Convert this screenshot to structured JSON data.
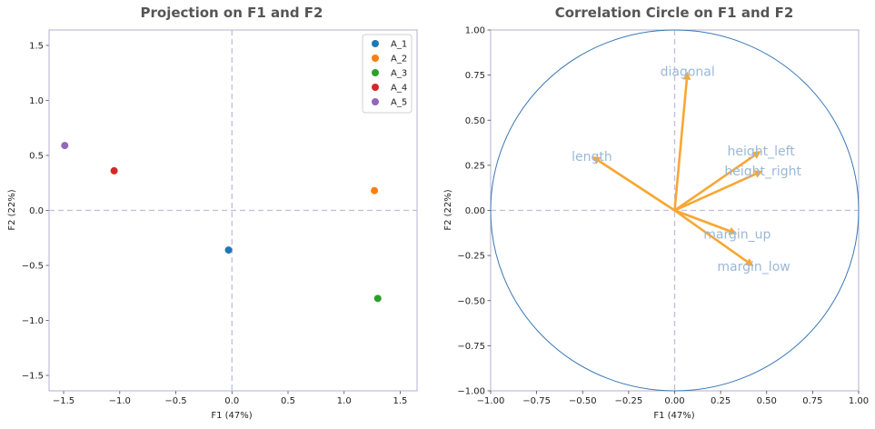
{
  "colors": {
    "frame": "#b0b0d0",
    "dashed": "#c0bde0",
    "circle": "#3a78b4",
    "arrow": "#f7a733",
    "var_label": "#9bb8d6"
  },
  "chart_data": [
    {
      "type": "scatter",
      "title": "Projection on F1 and F2",
      "xlabel": "F1 (47%)",
      "ylabel": "F2 (22%)",
      "xlim": [
        -1.63,
        1.65
      ],
      "ylim": [
        -1.64,
        1.64
      ],
      "xticks": [
        -1.5,
        -1.0,
        -0.5,
        0.0,
        0.5,
        1.0,
        1.5
      ],
      "xtick_labels": [
        "−1.5",
        "−1.0",
        "−0.5",
        "0.0",
        "0.5",
        "1.0",
        "1.5"
      ],
      "yticks": [
        -1.5,
        -1.0,
        -0.5,
        0.0,
        0.5,
        1.0,
        1.5
      ],
      "ytick_labels": [
        "−1.5",
        "−1.0",
        "−0.5",
        "0.0",
        "0.5",
        "1.0",
        "1.5"
      ],
      "legend_position": "top-right",
      "series": [
        {
          "name": "A_1",
          "x": -0.03,
          "y": -0.36,
          "color": "#1f77b4"
        },
        {
          "name": "A_2",
          "x": 1.27,
          "y": 0.18,
          "color": "#ff7f0e"
        },
        {
          "name": "A_3",
          "x": 1.3,
          "y": -0.8,
          "color": "#2ca02c"
        },
        {
          "name": "A_4",
          "x": -1.05,
          "y": 0.36,
          "color": "#d62728"
        },
        {
          "name": "A_5",
          "x": -1.49,
          "y": 0.59,
          "color": "#9467bd"
        }
      ]
    },
    {
      "type": "correlation_circle",
      "title": "Correlation Circle on F1 and F2",
      "xlabel": "F1 (47%)",
      "ylabel": "F2 (22%)",
      "xlim": [
        -1.0,
        1.0
      ],
      "ylim": [
        -1.0,
        1.0
      ],
      "xticks": [
        -1.0,
        -0.75,
        -0.5,
        -0.25,
        0.0,
        0.25,
        0.5,
        0.75,
        1.0
      ],
      "xtick_labels": [
        "−1.00",
        "−0.75",
        "−0.50",
        "−0.25",
        "0.00",
        "0.25",
        "0.50",
        "0.75",
        "1.00"
      ],
      "yticks": [
        -1.0,
        -0.75,
        -0.5,
        -0.25,
        0.0,
        0.25,
        0.5,
        0.75,
        1.0
      ],
      "ytick_labels": [
        "−1.00",
        "−0.75",
        "−0.50",
        "−0.25",
        "0.00",
        "0.25",
        "0.50",
        "0.75",
        "1.00"
      ],
      "variables": [
        {
          "name": "diagonal",
          "x": 0.07,
          "y": 0.77
        },
        {
          "name": "length",
          "x": -0.45,
          "y": 0.3
        },
        {
          "name": "height_left",
          "x": 0.47,
          "y": 0.33
        },
        {
          "name": "height_right",
          "x": 0.48,
          "y": 0.22
        },
        {
          "name": "margin_up",
          "x": 0.34,
          "y": -0.13
        },
        {
          "name": "margin_low",
          "x": 0.43,
          "y": -0.31
        }
      ]
    }
  ]
}
